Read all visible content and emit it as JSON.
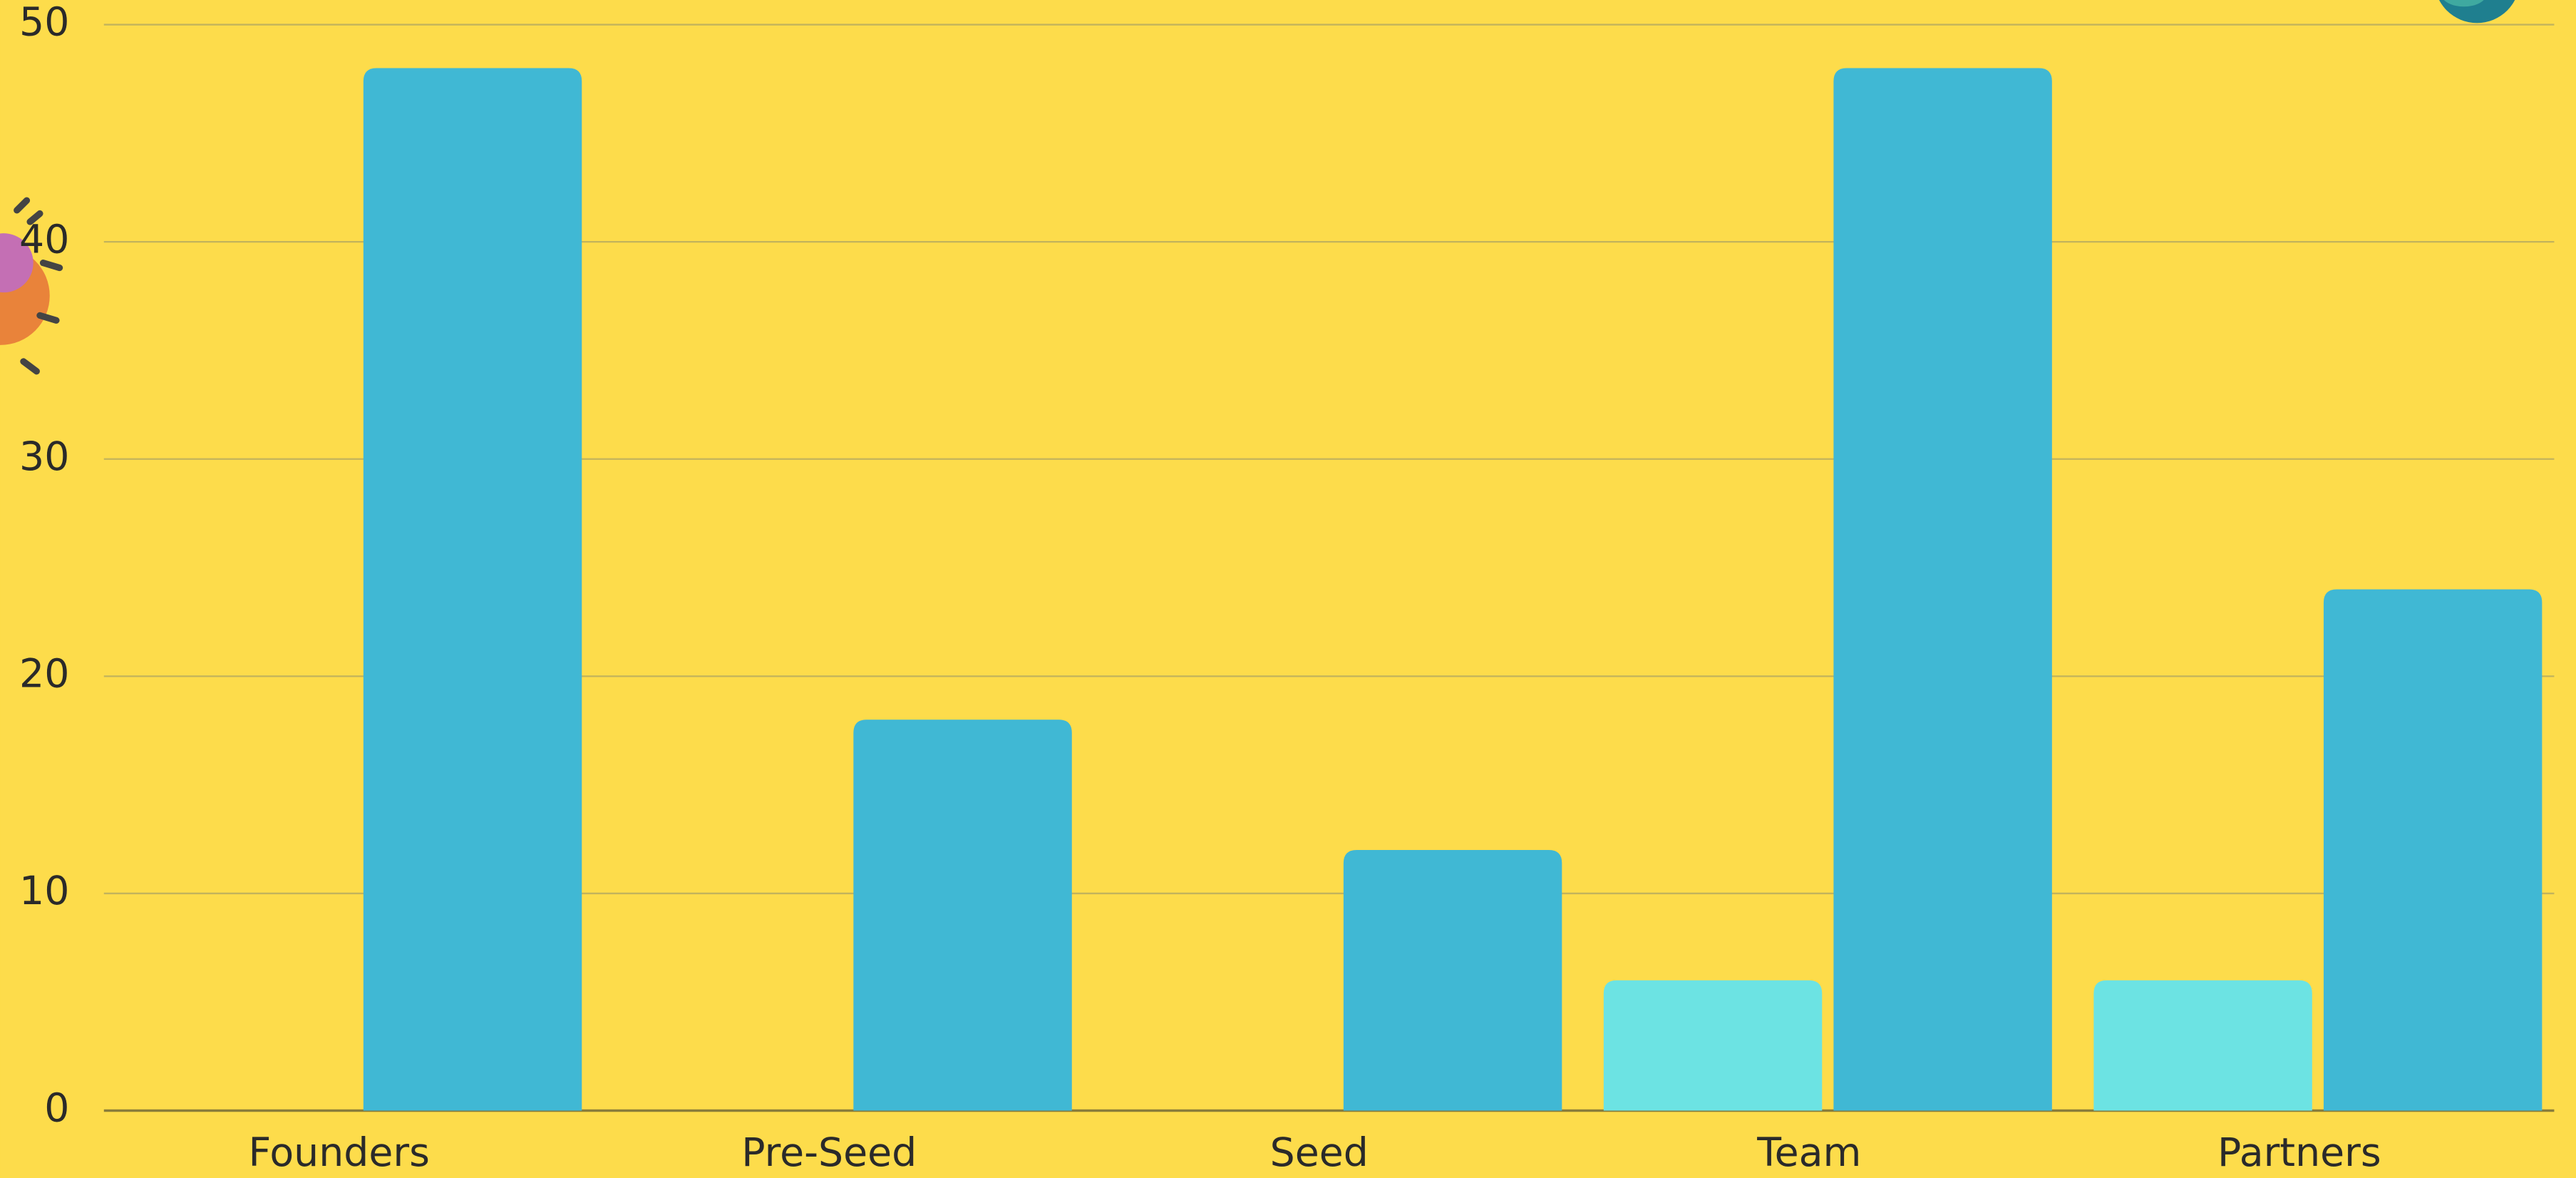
{
  "chart_data": {
    "type": "bar",
    "categories": [
      "Founders",
      "Pre-Seed",
      "Seed",
      "Team",
      "Partners"
    ],
    "series": [
      {
        "color": "#6ce3e3",
        "values": [
          0,
          0,
          0,
          6,
          6
        ]
      },
      {
        "color": "#40b8d4",
        "values": [
          48,
          18,
          12,
          48,
          24
        ]
      }
    ],
    "ylim": [
      0,
      50
    ],
    "yticks": [
      0,
      10,
      20,
      30,
      40,
      50
    ],
    "grid": true
  }
}
